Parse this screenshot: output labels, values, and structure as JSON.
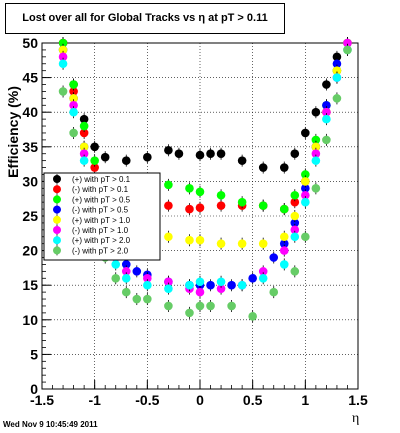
{
  "chart_data": {
    "type": "scatter",
    "title": "Lost over all for Global Tracks vs  η at pT > 0.11",
    "xlabel": "η",
    "ylabel": "Efficiency (%)",
    "xlim": [
      -1.5,
      1.5
    ],
    "ylim": [
      0,
      50
    ],
    "grid": true,
    "legend_position": "center-left",
    "xticks": [
      "-1.5",
      "-1",
      "-0.5",
      "0",
      "0.5",
      "1",
      "1.5"
    ],
    "yticks": [
      "0",
      "5",
      "10",
      "15",
      "20",
      "25",
      "30",
      "35",
      "40",
      "45",
      "50"
    ],
    "series": [
      {
        "name": "(+) with pT > 0.1",
        "color": "#000000",
        "x": [
          -1.3,
          -1.2,
          -1.1,
          -1.0,
          -0.9,
          -0.7,
          -0.5,
          -0.3,
          -0.2,
          0.0,
          0.1,
          0.2,
          0.4,
          0.6,
          0.8,
          0.9,
          1.0,
          1.1,
          1.2,
          1.3,
          1.4
        ],
        "y": [
          50,
          44,
          39,
          35,
          33.5,
          33,
          33.5,
          34.5,
          34,
          33.8,
          34,
          34,
          33,
          32,
          32,
          34,
          37,
          40,
          44,
          48,
          50
        ]
      },
      {
        "name": "(-) with pT > 0.1",
        "color": "#ff0000",
        "x": [
          -1.3,
          -1.2,
          -1.1,
          -1.0,
          -0.9,
          -0.7,
          -0.5,
          -0.3,
          -0.1,
          0.0,
          0.2,
          0.4,
          0.6,
          0.8,
          0.9,
          1.0,
          1.1,
          1.2,
          1.3,
          1.4
        ],
        "y": [
          50,
          43,
          37,
          32,
          28,
          27,
          27,
          26.5,
          26,
          26.2,
          26.5,
          26.5,
          26.5,
          26,
          27,
          30,
          35,
          40,
          46,
          50
        ]
      },
      {
        "name": "(+) with pT > 0.5",
        "color": "#00ff00",
        "x": [
          -1.3,
          -1.2,
          -1.1,
          -1.0,
          -0.9,
          -0.7,
          -0.5,
          -0.3,
          -0.1,
          0.0,
          0.2,
          0.4,
          0.6,
          0.8,
          0.9,
          1.0,
          1.1,
          1.2,
          1.3,
          1.4
        ],
        "y": [
          50,
          44,
          38,
          33,
          30,
          30,
          30,
          29.5,
          29,
          28.5,
          28,
          27,
          26.5,
          26,
          28,
          31,
          36,
          41,
          46,
          50
        ]
      },
      {
        "name": "(-) with pT > 0.5",
        "color": "#0000ff",
        "x": [
          -1.3,
          -1.2,
          -1.1,
          -1.0,
          -0.9,
          -0.8,
          -0.7,
          -0.6,
          -0.5,
          -0.3,
          -0.1,
          0.0,
          0.1,
          0.3,
          0.5,
          0.7,
          0.8,
          0.9,
          1.0,
          1.1,
          1.2,
          1.3,
          1.4
        ],
        "y": [
          49,
          42,
          35,
          28,
          23,
          20,
          18,
          17,
          16.5,
          15.5,
          15,
          15,
          15,
          15,
          16,
          19,
          21,
          24,
          29,
          35,
          41,
          47,
          50
        ]
      },
      {
        "name": "(+) with pT > 1.0",
        "color": "#ffff00",
        "x": [
          -1.3,
          -1.2,
          -1.1,
          -1.0,
          -0.9,
          -0.7,
          -0.5,
          -0.3,
          -0.1,
          0.0,
          0.2,
          0.4,
          0.6,
          0.8,
          0.9,
          1.0,
          1.1,
          1.2,
          1.3,
          1.4
        ],
        "y": [
          49,
          42,
          35,
          29,
          24,
          22,
          22,
          22,
          21.5,
          21.5,
          21,
          21,
          21,
          22,
          25,
          30,
          35,
          40,
          46,
          50
        ]
      },
      {
        "name": "(-) with pT > 1.0",
        "color": "#ff00ff",
        "x": [
          -1.3,
          -1.2,
          -1.1,
          -1.0,
          -0.9,
          -0.8,
          -0.7,
          -0.5,
          -0.3,
          -0.1,
          0.0,
          0.2,
          0.4,
          0.6,
          0.8,
          0.9,
          1.0,
          1.1,
          1.2,
          1.3,
          1.4
        ],
        "y": [
          48,
          41,
          34,
          27,
          22,
          19,
          17,
          16,
          15.5,
          14.5,
          14,
          14.5,
          15,
          17,
          20,
          23,
          28,
          34,
          40,
          45,
          50
        ]
      },
      {
        "name": "(+) with pT > 2.0",
        "color": "#00ffff",
        "x": [
          -1.3,
          -1.2,
          -1.1,
          -1.0,
          -0.9,
          -0.8,
          -0.7,
          -0.5,
          -0.3,
          -0.1,
          0.0,
          0.2,
          0.4,
          0.6,
          0.8,
          0.9,
          1.0,
          1.1,
          1.2,
          1.3,
          1.4
        ],
        "y": [
          47,
          40,
          33,
          26,
          21,
          18,
          16,
          15,
          14.5,
          15,
          15.5,
          15.5,
          15,
          16,
          18,
          22,
          27,
          33,
          39,
          45,
          49
        ]
      },
      {
        "name": "(-) with pT > 2.0",
        "color": "#66cc66",
        "x": [
          -1.3,
          -1.2,
          -1.1,
          -1.0,
          -0.9,
          -0.8,
          -0.7,
          -0.6,
          -0.5,
          -0.3,
          -0.1,
          0.0,
          0.1,
          0.3,
          0.5,
          0.7,
          0.9,
          1.0,
          1.1,
          1.2,
          1.3,
          1.4
        ],
        "y": [
          43,
          37,
          30,
          24,
          19,
          16,
          14,
          13,
          13,
          12,
          11,
          12,
          12,
          12,
          10.5,
          14,
          17,
          22,
          29,
          36,
          42,
          49
        ]
      }
    ]
  },
  "footer": {
    "timestamp": "Wed Nov  9 10:45:49 2011"
  }
}
